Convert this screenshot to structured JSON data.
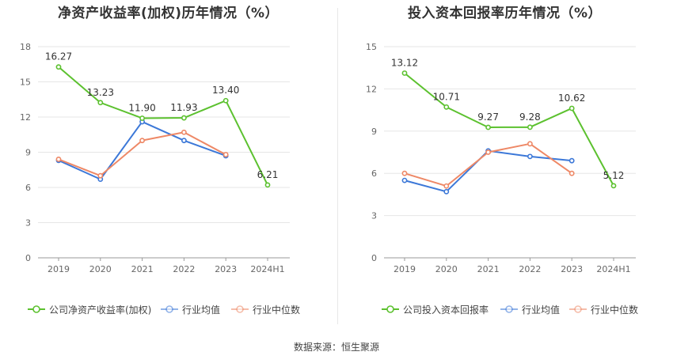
{
  "chart_data": [
    {
      "type": "line",
      "title": "净资产收益率(加权)历年情况（%）",
      "categories": [
        "2019",
        "2020",
        "2021",
        "2022",
        "2023",
        "2024H1"
      ],
      "ylim": [
        0,
        18
      ],
      "yticks": [
        "0",
        "3",
        "6",
        "9",
        "12",
        "15",
        "18"
      ],
      "grid": true,
      "legend_position": "bottom",
      "series": [
        {
          "name": "公司净资产收益率(加权)",
          "color": "#5cc12f",
          "values": [
            16.27,
            13.23,
            11.9,
            11.93,
            13.4,
            6.21
          ],
          "labels": [
            "16.27",
            "13.23",
            "11.90",
            "11.93",
            "13.40",
            "6.21"
          ]
        },
        {
          "name": "行业均值",
          "color": "#3c78d8",
          "values": [
            8.3,
            6.7,
            11.6,
            10.0,
            8.7,
            null
          ]
        },
        {
          "name": "行业中位数",
          "color": "#ee8866",
          "values": [
            8.4,
            7.0,
            10.0,
            10.7,
            8.8,
            null
          ]
        }
      ]
    },
    {
      "type": "line",
      "title": "投入资本回报率历年情况（%）",
      "categories": [
        "2019",
        "2020",
        "2021",
        "2022",
        "2023",
        "2024H1"
      ],
      "ylim": [
        0,
        15
      ],
      "yticks": [
        "0",
        "3",
        "6",
        "9",
        "12",
        "15"
      ],
      "grid": true,
      "legend_position": "bottom",
      "series": [
        {
          "name": "公司投入资本回报率",
          "color": "#5cc12f",
          "values": [
            13.12,
            10.71,
            9.27,
            9.28,
            10.62,
            5.12
          ],
          "labels": [
            "13.12",
            "10.71",
            "9.27",
            "9.28",
            "10.62",
            "5.12"
          ]
        },
        {
          "name": "行业均值",
          "color": "#3c78d8",
          "values": [
            5.5,
            4.7,
            7.6,
            7.2,
            6.9,
            null
          ]
        },
        {
          "name": "行业中位数",
          "color": "#ee8866",
          "values": [
            6.0,
            5.1,
            7.5,
            8.1,
            6.0,
            null
          ]
        }
      ]
    }
  ],
  "footer": {
    "source": "数据来源：恒生聚源"
  }
}
